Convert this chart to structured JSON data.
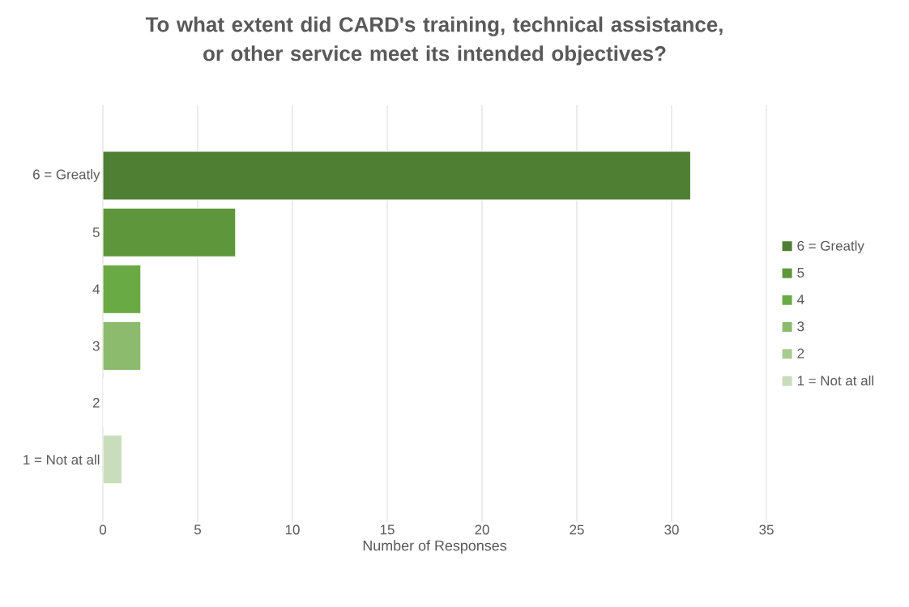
{
  "chart_data": {
    "type": "bar",
    "orientation": "horizontal",
    "title": "To what extent did CARD's training, technical assistance, or other service meet its intended objectives?",
    "xlabel": "Number of Responses",
    "categories": [
      "6 = Greatly",
      "5",
      "4",
      "3",
      "2",
      "1 = Not at all"
    ],
    "series": [
      {
        "name": "6 = Greatly",
        "color": "#4e7f33",
        "values": [
          31,
          null,
          null,
          null,
          null,
          null
        ]
      },
      {
        "name": "5",
        "color": "#5e963b",
        "values": [
          null,
          7,
          null,
          null,
          null,
          null
        ]
      },
      {
        "name": "4",
        "color": "#6aaa45",
        "values": [
          null,
          null,
          2,
          null,
          null,
          null
        ]
      },
      {
        "name": "3",
        "color": "#8cbb6e",
        "values": [
          null,
          null,
          null,
          2,
          null,
          null
        ]
      },
      {
        "name": "2",
        "color": "#a8cc90",
        "values": [
          null,
          null,
          null,
          null,
          0,
          null
        ]
      },
      {
        "name": "1 = Not at all",
        "color": "#c9ddbc",
        "values": [
          null,
          null,
          null,
          null,
          null,
          1
        ]
      }
    ],
    "xlim": [
      0,
      35
    ],
    "xticks": [
      0,
      5,
      10,
      15,
      20,
      25,
      30,
      35
    ],
    "grid": "x",
    "legend": "right"
  }
}
